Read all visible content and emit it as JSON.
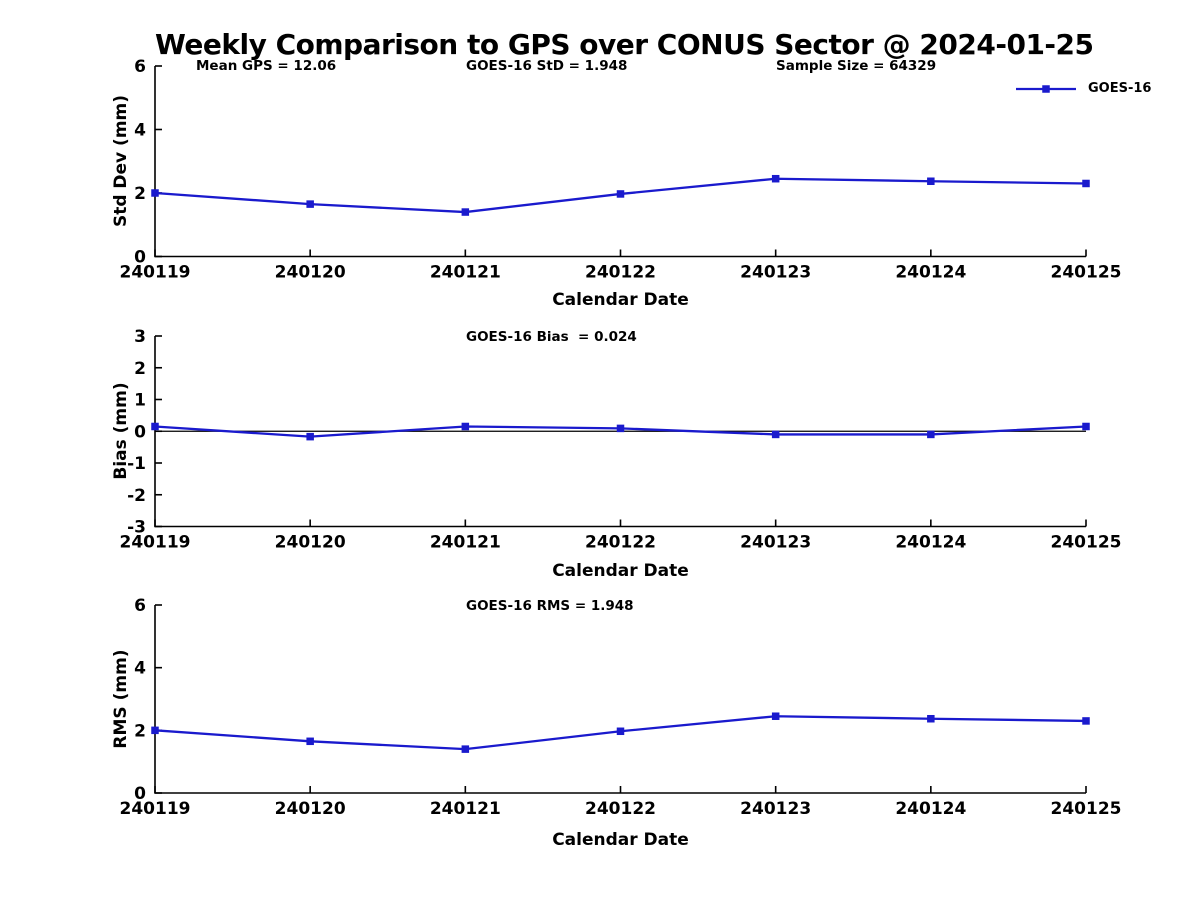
{
  "title": "Weekly Comparison to GPS over CONUS Sector @ 2024-01-25",
  "legend": {
    "label": "GOES-16"
  },
  "colors": {
    "line": "#1A1ACD",
    "axis": "#000000",
    "text": "#000000"
  },
  "stats": {
    "mean_gps": 12.06,
    "goes16_std": 1.948,
    "sample_size": 64329,
    "goes16_bias": 0.024,
    "goes16_rms": 1.948
  },
  "chart_data": [
    {
      "type": "line",
      "name": "std-dev",
      "title": "",
      "ylabel": "Std Dev (mm)",
      "xlabel": "Calendar Date",
      "categories": [
        "240119",
        "240120",
        "240121",
        "240122",
        "240123",
        "240124",
        "240125"
      ],
      "series": [
        {
          "name": "GOES-16",
          "values": [
            2.0,
            1.65,
            1.4,
            1.97,
            2.45,
            2.37,
            2.3
          ]
        }
      ],
      "ylim": [
        0,
        6
      ],
      "yticks": [
        0,
        2,
        4,
        6
      ],
      "annotations": [
        "Mean GPS = 12.06",
        "GOES-16 StD = 1.948",
        "Sample Size = 64329"
      ],
      "zero_line": false,
      "grid": false,
      "marker": "square",
      "legend_position": "top-right"
    },
    {
      "type": "line",
      "name": "bias",
      "title": "",
      "ylabel": "Bias (mm)",
      "xlabel": "Calendar Date",
      "categories": [
        "240119",
        "240120",
        "240121",
        "240122",
        "240123",
        "240124",
        "240125"
      ],
      "series": [
        {
          "name": "GOES-16",
          "values": [
            0.15,
            -0.17,
            0.15,
            0.09,
            -0.1,
            -0.1,
            0.15
          ]
        }
      ],
      "ylim": [
        -3,
        3
      ],
      "yticks": [
        -3,
        -2,
        -1,
        0,
        1,
        2,
        3
      ],
      "annotations": [
        "GOES-16 Bias  = 0.024"
      ],
      "zero_line": true,
      "grid": false,
      "marker": "square",
      "legend_position": "none"
    },
    {
      "type": "line",
      "name": "rms",
      "title": "",
      "ylabel": "RMS (mm)",
      "xlabel": "Calendar Date",
      "categories": [
        "240119",
        "240120",
        "240121",
        "240122",
        "240123",
        "240124",
        "240125"
      ],
      "series": [
        {
          "name": "GOES-16",
          "values": [
            2.0,
            1.65,
            1.4,
            1.97,
            2.45,
            2.37,
            2.3
          ]
        }
      ],
      "ylim": [
        0,
        6
      ],
      "yticks": [
        0,
        2,
        4,
        6
      ],
      "annotations": [
        "GOES-16 RMS = 1.948"
      ],
      "zero_line": false,
      "grid": false,
      "marker": "square",
      "legend_position": "none"
    }
  ]
}
